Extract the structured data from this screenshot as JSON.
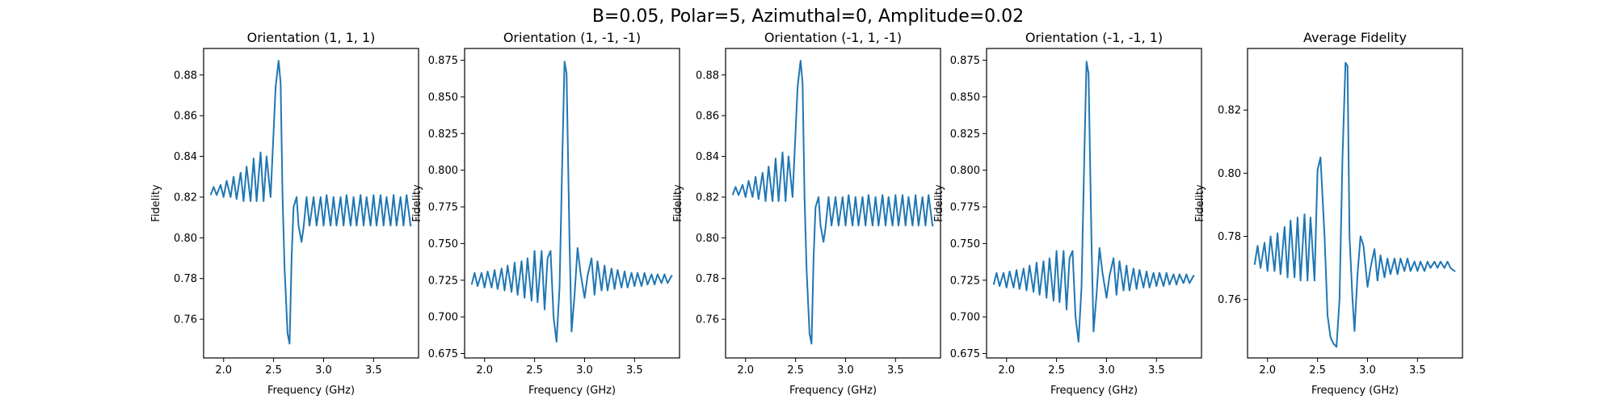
{
  "figure": {
    "suptitle": "B=0.05, Polar=5, Azimuthal=0, Amplitude=0.02"
  },
  "style": {
    "line_color": "#1f77b4",
    "axes_color": "#000000",
    "background": "#ffffff"
  },
  "chart_data": [
    {
      "type": "line",
      "title": "Orientation (1, 1, 1)",
      "xlabel": "Frequency (GHz)",
      "ylabel": "Fidelity",
      "xlim": [
        1.8,
        3.95
      ],
      "ylim": [
        0.741,
        0.893
      ],
      "xticks": [
        2.0,
        2.5,
        3.0,
        3.5
      ],
      "xtick_labels": [
        "2.0",
        "2.5",
        "3.0",
        "3.5"
      ],
      "yticks": [
        0.76,
        0.78,
        0.8,
        0.82,
        0.84,
        0.86,
        0.88
      ],
      "ytick_labels": [
        "0.76",
        "0.78",
        "0.80",
        "0.82",
        "0.84",
        "0.86",
        "0.88"
      ],
      "series": [
        {
          "x": [
            1.87,
            1.9,
            1.93,
            1.97,
            2.0,
            2.03,
            2.07,
            2.1,
            2.13,
            2.17,
            2.2,
            2.23,
            2.27,
            2.3,
            2.33,
            2.37,
            2.4,
            2.43,
            2.47,
            2.5,
            2.52,
            2.55,
            2.57,
            2.59,
            2.61,
            2.64,
            2.66,
            2.68,
            2.7,
            2.73,
            2.75,
            2.78,
            2.8,
            2.83,
            2.86,
            2.9,
            2.93,
            2.97,
            3.0,
            3.03,
            3.07,
            3.1,
            3.13,
            3.17,
            3.2,
            3.23,
            3.27,
            3.3,
            3.33,
            3.37,
            3.4,
            3.43,
            3.47,
            3.5,
            3.53,
            3.57,
            3.6,
            3.63,
            3.67,
            3.7,
            3.73,
            3.77,
            3.8,
            3.83,
            3.87,
            3.88
          ],
          "y": [
            0.821,
            0.825,
            0.821,
            0.826,
            0.82,
            0.828,
            0.82,
            0.83,
            0.819,
            0.832,
            0.818,
            0.835,
            0.818,
            0.839,
            0.818,
            0.842,
            0.818,
            0.84,
            0.82,
            0.852,
            0.874,
            0.887,
            0.876,
            0.82,
            0.785,
            0.753,
            0.748,
            0.79,
            0.815,
            0.82,
            0.806,
            0.798,
            0.805,
            0.82,
            0.806,
            0.82,
            0.806,
            0.82,
            0.806,
            0.821,
            0.806,
            0.82,
            0.806,
            0.82,
            0.806,
            0.821,
            0.806,
            0.82,
            0.806,
            0.821,
            0.806,
            0.82,
            0.806,
            0.821,
            0.806,
            0.821,
            0.806,
            0.82,
            0.806,
            0.821,
            0.806,
            0.82,
            0.806,
            0.821,
            0.806,
            0.806
          ]
        }
      ]
    },
    {
      "type": "line",
      "title": "Orientation (1, -1, -1)",
      "xlabel": "Frequency (GHz)",
      "ylabel": "Fidelity",
      "xlim": [
        1.8,
        3.95
      ],
      "ylim": [
        0.672,
        0.883
      ],
      "xticks": [
        2.0,
        2.5,
        3.0,
        3.5
      ],
      "xtick_labels": [
        "2.0",
        "2.5",
        "3.0",
        "3.5"
      ],
      "yticks": [
        0.675,
        0.7,
        0.725,
        0.75,
        0.775,
        0.8,
        0.825,
        0.85,
        0.875
      ],
      "ytick_labels": [
        "0.675",
        "0.700",
        "0.725",
        "0.750",
        "0.775",
        "0.800",
        "0.825",
        "0.850",
        "0.875"
      ],
      "series": [
        {
          "x": [
            1.87,
            1.9,
            1.93,
            1.97,
            2.0,
            2.03,
            2.07,
            2.1,
            2.13,
            2.17,
            2.2,
            2.23,
            2.27,
            2.3,
            2.33,
            2.37,
            2.4,
            2.43,
            2.47,
            2.5,
            2.53,
            2.57,
            2.6,
            2.63,
            2.66,
            2.69,
            2.72,
            2.75,
            2.78,
            2.8,
            2.82,
            2.85,
            2.87,
            2.9,
            2.93,
            2.96,
            3.0,
            3.03,
            3.07,
            3.1,
            3.13,
            3.17,
            3.2,
            3.23,
            3.27,
            3.3,
            3.33,
            3.37,
            3.4,
            3.43,
            3.47,
            3.5,
            3.53,
            3.57,
            3.6,
            3.63,
            3.67,
            3.7,
            3.73,
            3.77,
            3.8,
            3.83,
            3.87,
            3.88
          ],
          "y": [
            0.722,
            0.73,
            0.721,
            0.73,
            0.72,
            0.731,
            0.72,
            0.732,
            0.719,
            0.733,
            0.718,
            0.735,
            0.717,
            0.737,
            0.715,
            0.738,
            0.713,
            0.74,
            0.711,
            0.745,
            0.71,
            0.745,
            0.705,
            0.74,
            0.745,
            0.7,
            0.683,
            0.72,
            0.815,
            0.874,
            0.866,
            0.75,
            0.69,
            0.715,
            0.747,
            0.73,
            0.713,
            0.728,
            0.74,
            0.715,
            0.738,
            0.718,
            0.735,
            0.718,
            0.733,
            0.719,
            0.732,
            0.72,
            0.731,
            0.72,
            0.73,
            0.721,
            0.73,
            0.721,
            0.73,
            0.722,
            0.729,
            0.722,
            0.729,
            0.723,
            0.729,
            0.723,
            0.728,
            0.728
          ]
        }
      ]
    },
    {
      "type": "line",
      "title": "Orientation (-1, 1, -1)",
      "xlabel": "Frequency (GHz)",
      "ylabel": "Fidelity",
      "xlim": [
        1.8,
        3.95
      ],
      "ylim": [
        0.741,
        0.893
      ],
      "xticks": [
        2.0,
        2.5,
        3.0,
        3.5
      ],
      "xtick_labels": [
        "2.0",
        "2.5",
        "3.0",
        "3.5"
      ],
      "yticks": [
        0.76,
        0.78,
        0.8,
        0.82,
        0.84,
        0.86,
        0.88
      ],
      "ytick_labels": [
        "0.76",
        "0.78",
        "0.80",
        "0.82",
        "0.84",
        "0.86",
        "0.88"
      ],
      "series": [
        {
          "x": [
            1.87,
            1.9,
            1.93,
            1.97,
            2.0,
            2.03,
            2.07,
            2.1,
            2.13,
            2.17,
            2.2,
            2.23,
            2.27,
            2.3,
            2.33,
            2.37,
            2.4,
            2.43,
            2.47,
            2.5,
            2.52,
            2.55,
            2.57,
            2.59,
            2.61,
            2.64,
            2.66,
            2.68,
            2.7,
            2.73,
            2.75,
            2.78,
            2.8,
            2.83,
            2.86,
            2.9,
            2.93,
            2.97,
            3.0,
            3.03,
            3.07,
            3.1,
            3.13,
            3.17,
            3.2,
            3.23,
            3.27,
            3.3,
            3.33,
            3.37,
            3.4,
            3.43,
            3.47,
            3.5,
            3.53,
            3.57,
            3.6,
            3.63,
            3.67,
            3.7,
            3.73,
            3.77,
            3.8,
            3.83,
            3.87,
            3.88
          ],
          "y": [
            0.821,
            0.825,
            0.821,
            0.826,
            0.82,
            0.828,
            0.82,
            0.83,
            0.819,
            0.832,
            0.818,
            0.835,
            0.818,
            0.839,
            0.818,
            0.842,
            0.818,
            0.84,
            0.82,
            0.852,
            0.874,
            0.887,
            0.876,
            0.82,
            0.785,
            0.753,
            0.748,
            0.79,
            0.815,
            0.82,
            0.806,
            0.798,
            0.805,
            0.82,
            0.806,
            0.82,
            0.806,
            0.82,
            0.806,
            0.821,
            0.806,
            0.82,
            0.806,
            0.82,
            0.806,
            0.821,
            0.806,
            0.82,
            0.806,
            0.821,
            0.806,
            0.82,
            0.806,
            0.821,
            0.806,
            0.821,
            0.806,
            0.82,
            0.806,
            0.821,
            0.806,
            0.82,
            0.806,
            0.821,
            0.806,
            0.806
          ]
        }
      ]
    },
    {
      "type": "line",
      "title": "Orientation (-1, -1, 1)",
      "xlabel": "Frequency (GHz)",
      "ylabel": "Fidelity",
      "xlim": [
        1.8,
        3.95
      ],
      "ylim": [
        0.672,
        0.883
      ],
      "xticks": [
        2.0,
        2.5,
        3.0,
        3.5
      ],
      "xtick_labels": [
        "2.0",
        "2.5",
        "3.0",
        "3.5"
      ],
      "yticks": [
        0.675,
        0.7,
        0.725,
        0.75,
        0.775,
        0.8,
        0.825,
        0.85,
        0.875
      ],
      "ytick_labels": [
        "0.675",
        "0.700",
        "0.725",
        "0.750",
        "0.775",
        "0.800",
        "0.825",
        "0.850",
        "0.875"
      ],
      "series": [
        {
          "x": [
            1.87,
            1.9,
            1.93,
            1.97,
            2.0,
            2.03,
            2.07,
            2.1,
            2.13,
            2.17,
            2.2,
            2.23,
            2.27,
            2.3,
            2.33,
            2.37,
            2.4,
            2.43,
            2.47,
            2.5,
            2.53,
            2.57,
            2.6,
            2.63,
            2.66,
            2.69,
            2.72,
            2.75,
            2.78,
            2.8,
            2.82,
            2.85,
            2.87,
            2.9,
            2.93,
            2.96,
            3.0,
            3.03,
            3.07,
            3.1,
            3.13,
            3.17,
            3.2,
            3.23,
            3.27,
            3.3,
            3.33,
            3.37,
            3.4,
            3.43,
            3.47,
            3.5,
            3.53,
            3.57,
            3.6,
            3.63,
            3.67,
            3.7,
            3.73,
            3.77,
            3.8,
            3.83,
            3.87,
            3.88
          ],
          "y": [
            0.722,
            0.73,
            0.721,
            0.73,
            0.72,
            0.731,
            0.72,
            0.732,
            0.719,
            0.733,
            0.718,
            0.735,
            0.717,
            0.737,
            0.715,
            0.738,
            0.713,
            0.74,
            0.711,
            0.745,
            0.71,
            0.745,
            0.705,
            0.74,
            0.745,
            0.7,
            0.683,
            0.72,
            0.815,
            0.874,
            0.866,
            0.75,
            0.69,
            0.715,
            0.747,
            0.73,
            0.713,
            0.728,
            0.74,
            0.715,
            0.738,
            0.718,
            0.735,
            0.718,
            0.733,
            0.719,
            0.732,
            0.72,
            0.731,
            0.72,
            0.73,
            0.721,
            0.73,
            0.721,
            0.73,
            0.722,
            0.729,
            0.722,
            0.729,
            0.723,
            0.729,
            0.723,
            0.728,
            0.728
          ]
        }
      ]
    },
    {
      "type": "line",
      "title": "Average Fidelity",
      "xlabel": "Frequency (GHz)",
      "ylabel": "Fidelity",
      "xlim": [
        1.8,
        3.95
      ],
      "ylim": [
        0.7415,
        0.8395
      ],
      "xticks": [
        2.0,
        2.5,
        3.0,
        3.5
      ],
      "xtick_labels": [
        "2.0",
        "2.5",
        "3.0",
        "3.5"
      ],
      "yticks": [
        0.76,
        0.78,
        0.8,
        0.82
      ],
      "ytick_labels": [
        "0.76",
        "0.78",
        "0.80",
        "0.82"
      ],
      "series": [
        {
          "x": [
            1.87,
            1.9,
            1.93,
            1.97,
            2.0,
            2.03,
            2.07,
            2.1,
            2.13,
            2.17,
            2.2,
            2.23,
            2.27,
            2.3,
            2.33,
            2.37,
            2.4,
            2.43,
            2.47,
            2.5,
            2.53,
            2.57,
            2.6,
            2.63,
            2.66,
            2.69,
            2.72,
            2.75,
            2.78,
            2.8,
            2.82,
            2.85,
            2.87,
            2.9,
            2.93,
            2.96,
            3.0,
            3.03,
            3.07,
            3.1,
            3.13,
            3.17,
            3.2,
            3.23,
            3.27,
            3.3,
            3.33,
            3.37,
            3.4,
            3.43,
            3.47,
            3.5,
            3.53,
            3.57,
            3.6,
            3.63,
            3.67,
            3.7,
            3.73,
            3.77,
            3.8,
            3.83,
            3.87,
            3.88
          ],
          "y": [
            0.771,
            0.777,
            0.77,
            0.778,
            0.769,
            0.78,
            0.769,
            0.781,
            0.768,
            0.783,
            0.767,
            0.785,
            0.767,
            0.786,
            0.766,
            0.787,
            0.766,
            0.786,
            0.766,
            0.801,
            0.805,
            0.78,
            0.755,
            0.748,
            0.746,
            0.745,
            0.76,
            0.805,
            0.835,
            0.834,
            0.78,
            0.76,
            0.75,
            0.768,
            0.78,
            0.777,
            0.764,
            0.77,
            0.776,
            0.766,
            0.774,
            0.767,
            0.773,
            0.768,
            0.773,
            0.768,
            0.773,
            0.769,
            0.773,
            0.769,
            0.772,
            0.769,
            0.772,
            0.769,
            0.772,
            0.77,
            0.772,
            0.77,
            0.772,
            0.77,
            0.772,
            0.77,
            0.769,
            0.769
          ]
        }
      ]
    }
  ]
}
